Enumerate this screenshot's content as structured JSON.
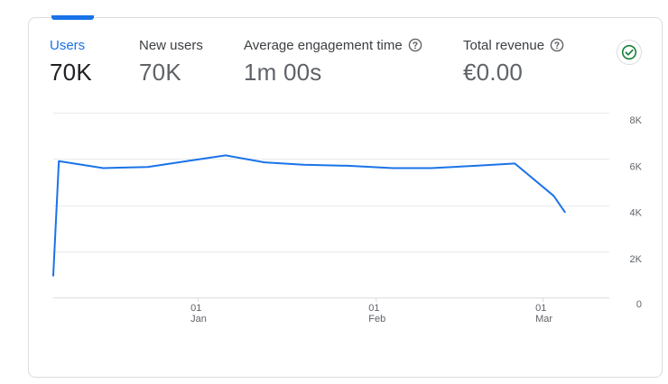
{
  "metrics": [
    {
      "label": "Users",
      "value": "70K"
    },
    {
      "label": "New users",
      "value": "70K"
    },
    {
      "label": "Average engagement time",
      "value": "1m 00s"
    },
    {
      "label": "Total revenue",
      "value": "€0.00"
    }
  ],
  "icons": {
    "help": "help-circle-icon",
    "status": "check-circle-icon"
  },
  "colors": {
    "accent": "#1a73e8",
    "line": "#1a73e8",
    "grid": "#e8eaed",
    "check": "#188038"
  },
  "chart_data": {
    "type": "line",
    "title": "Users",
    "series": [
      {
        "name": "Users",
        "x": [
          0,
          1,
          9,
          17,
          24,
          31,
          38,
          45,
          53,
          61,
          68,
          76,
          83,
          90,
          92
        ],
        "values": [
          950,
          5900,
          5600,
          5650,
          5900,
          6150,
          5850,
          5750,
          5700,
          5600,
          5600,
          5700,
          5800,
          4400,
          3700
        ]
      }
    ],
    "xlim": [
      0,
      100
    ],
    "x_ticks": [
      {
        "x": 26,
        "day": "01",
        "month": "Jan"
      },
      {
        "x": 58,
        "day": "01",
        "month": "Feb"
      },
      {
        "x": 88,
        "day": "01",
        "month": "Mar"
      }
    ],
    "ylim": [
      0,
      8000
    ],
    "y_ticks": [
      {
        "value": 0,
        "label": "0"
      },
      {
        "value": 2000,
        "label": "2K"
      },
      {
        "value": 4000,
        "label": "4K"
      },
      {
        "value": 6000,
        "label": "6K"
      },
      {
        "value": 8000,
        "label": "8K"
      }
    ],
    "grid": true
  }
}
